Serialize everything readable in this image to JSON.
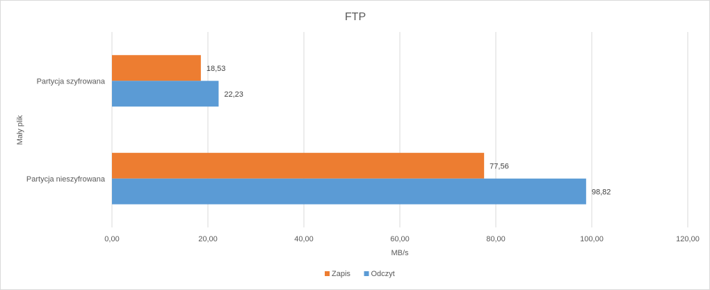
{
  "chart_data": {
    "type": "bar",
    "orientation": "horizontal",
    "title": "FTP",
    "xlabel": "MB/s",
    "group_label": "Mały plik",
    "categories": [
      "Partycja szyfrowana",
      "Partycja nieszyfrowana"
    ],
    "series": [
      {
        "name": "Zapis",
        "color": "#ed7d31",
        "values": [
          18.53,
          77.56
        ],
        "value_labels": [
          "18,53",
          "77,56"
        ]
      },
      {
        "name": "Odczyt",
        "color": "#5b9bd5",
        "values": [
          22.23,
          98.82
        ],
        "value_labels": [
          "22,23",
          "98,82"
        ]
      }
    ],
    "xlim": [
      0,
      120
    ],
    "xticks": [
      0,
      20,
      40,
      60,
      80,
      100,
      120
    ],
    "xtick_labels": [
      "0,00",
      "20,00",
      "40,00",
      "60,00",
      "80,00",
      "100,00",
      "120,00"
    ],
    "grid": true,
    "legend_position": "bottom"
  }
}
